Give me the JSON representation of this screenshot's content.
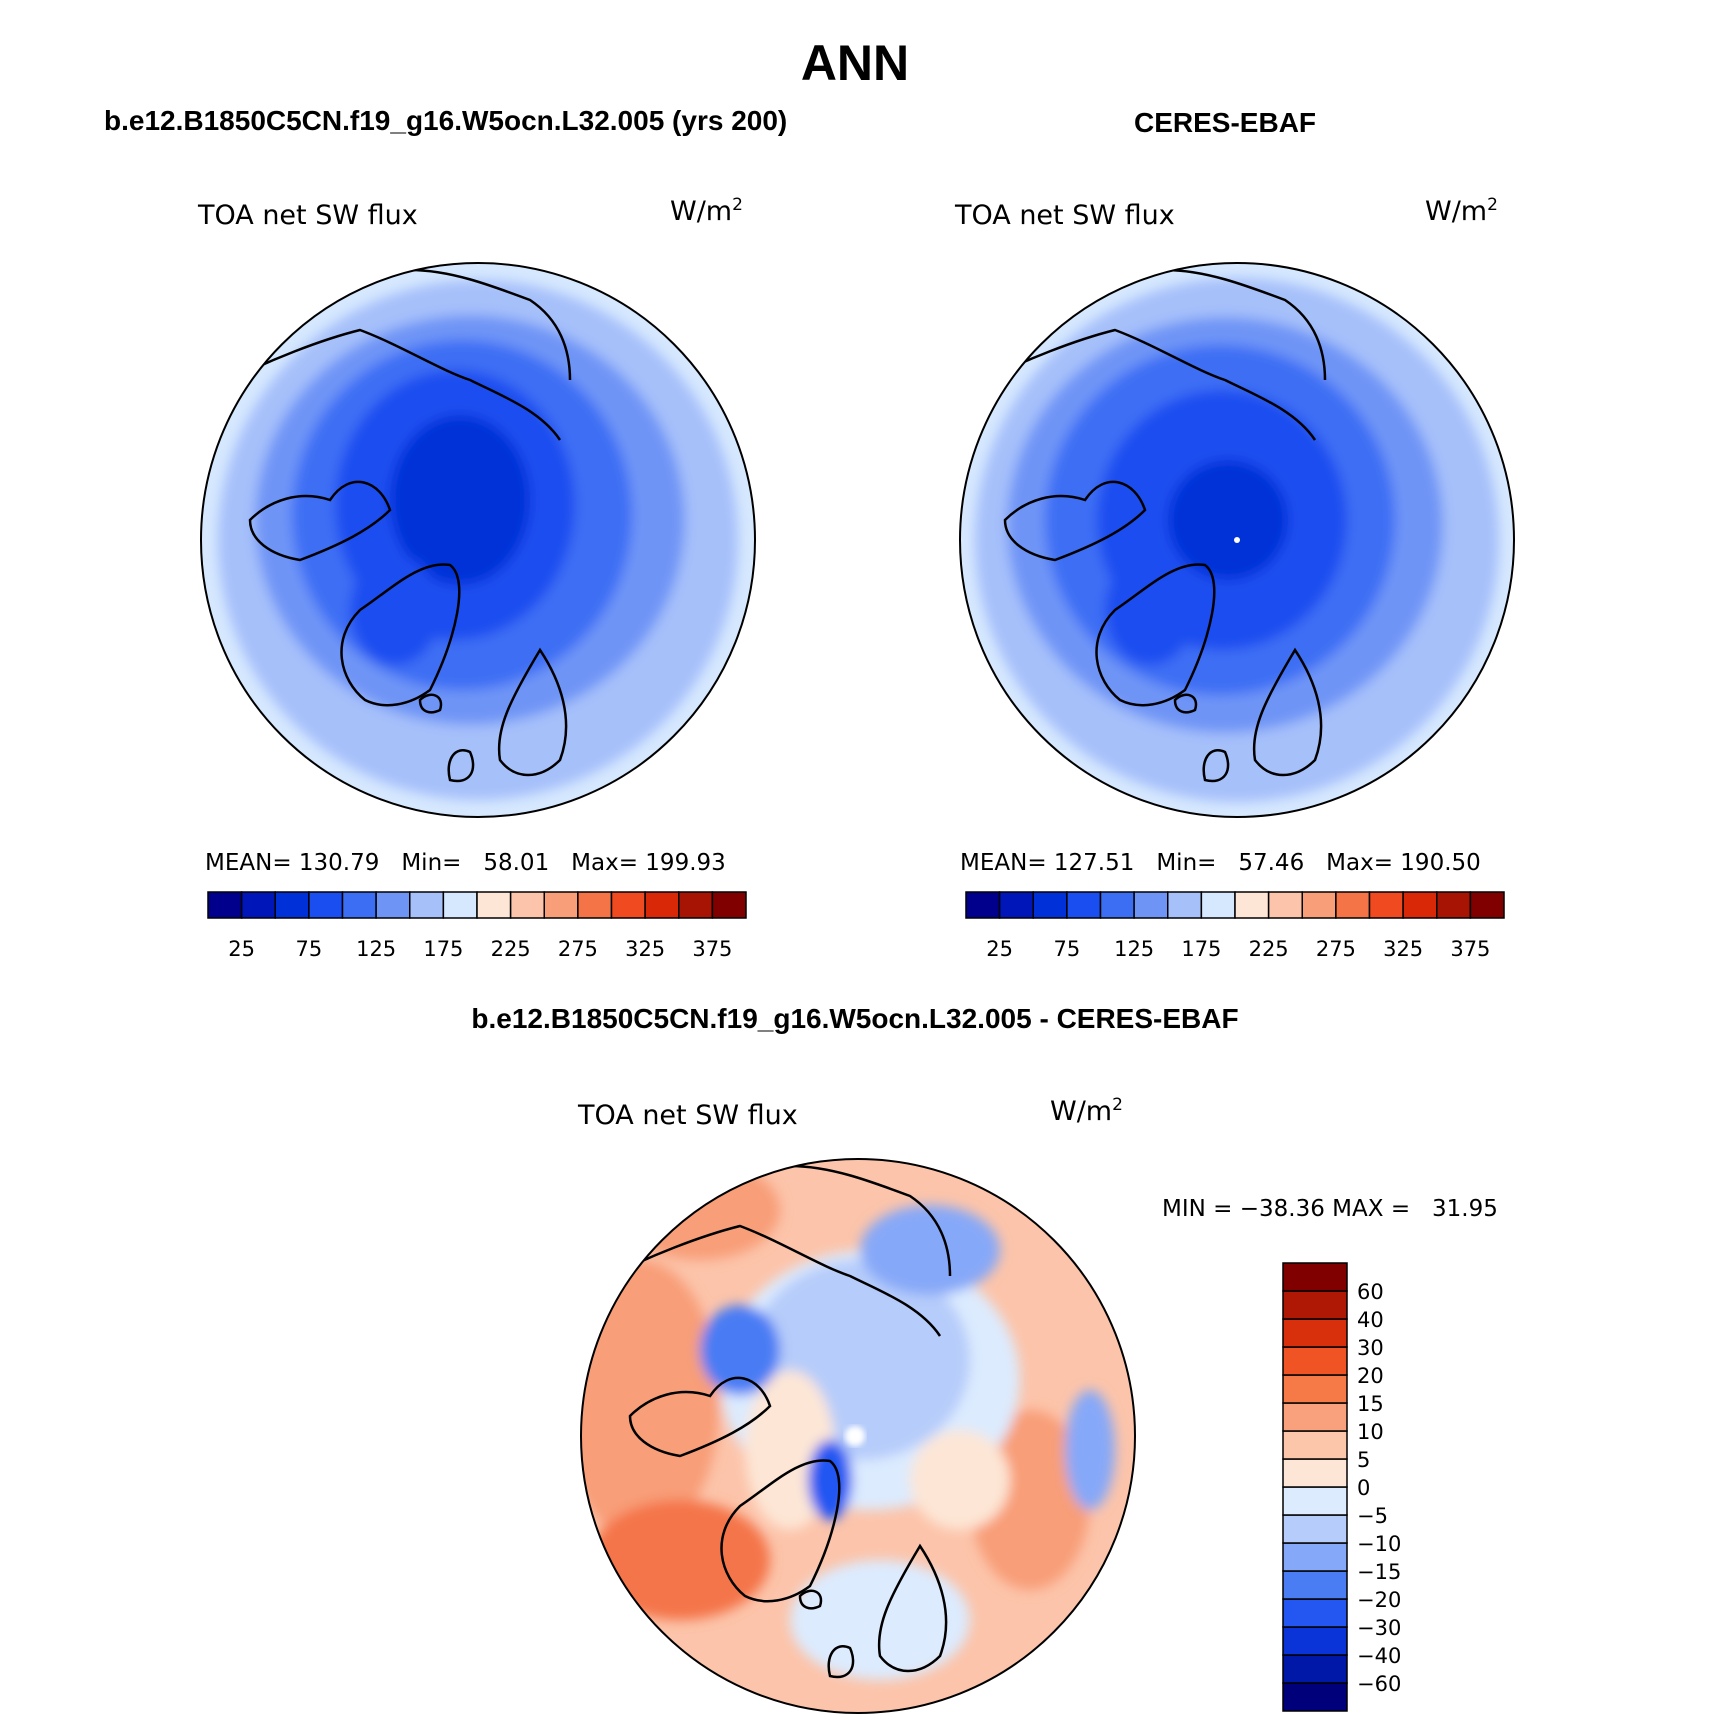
{
  "page_title": "ANN",
  "panels": [
    {
      "header": "b.e12.B1850C5CN.f19_g16.W5ocn.L32.005 (yrs 200)",
      "variable": "TOA net SW flux",
      "units_base": "W/m",
      "units_exp": "2",
      "stats": {
        "mean_label": "MEAN=",
        "mean": "130.79",
        "min_label": "Min=",
        "min": "58.01",
        "max_label": "Max=",
        "max": "199.93"
      }
    },
    {
      "header": "CERES-EBAF",
      "variable": "TOA net SW flux",
      "units_base": "W/m",
      "units_exp": "2",
      "stats": {
        "mean_label": "MEAN=",
        "mean": "127.51",
        "min_label": "Min=",
        "min": "57.46",
        "max_label": "Max=",
        "max": "190.50"
      }
    }
  ],
  "diff_panel": {
    "header": "b.e12.B1850C5CN.f19_g16.W5ocn.L32.005 - CERES-EBAF",
    "variable": "TOA net SW flux",
    "units_base": "W/m",
    "units_exp": "2",
    "stats": {
      "min_label": "MIN =",
      "min": "−38.36",
      "max_label": "MAX =",
      "max": "31.95"
    }
  },
  "colorbar_abs": {
    "colors": [
      "#00008c",
      "#0016b8",
      "#0030d8",
      "#1a4ef0",
      "#3c6ef4",
      "#6e94f6",
      "#a6c0fa",
      "#d6e8fe",
      "#fde6d6",
      "#fcc4aa",
      "#f89e78",
      "#f47448",
      "#f04a20",
      "#d82808",
      "#a81404",
      "#800000"
    ],
    "labels": [
      "25",
      "75",
      "125",
      "175",
      "225",
      "275",
      "325",
      "375"
    ]
  },
  "colorbar_diff": {
    "colors": [
      "#00007a",
      "#0018a8",
      "#0a34d8",
      "#2456f2",
      "#4a7cf4",
      "#86a8f8",
      "#b6ccfa",
      "#dcebfe",
      "#fde6d6",
      "#fcc6aa",
      "#f9a07c",
      "#f57a48",
      "#f05424",
      "#d8300c",
      "#b01806",
      "#800000"
    ],
    "labels": [
      "60",
      "40",
      "30",
      "20",
      "15",
      "10",
      "5",
      "0",
      "−5",
      "−10",
      "−15",
      "−20",
      "−30",
      "−40",
      "−60"
    ]
  },
  "maps": {
    "land_color": "#000000",
    "ring_color": "#000000"
  }
}
